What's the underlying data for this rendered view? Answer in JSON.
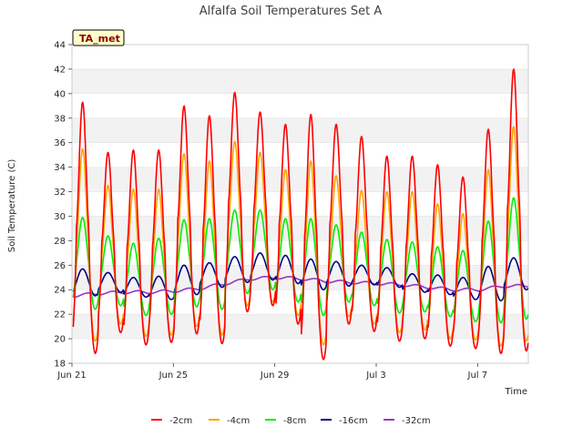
{
  "chart_data": {
    "type": "line",
    "title": "Alfalfa Soil Temperatures Set A",
    "xlabel": "Time",
    "ylabel": "Soil Temperature (C)",
    "station_label": "TA_met",
    "ylim": [
      18,
      44
    ],
    "y_ticks": [
      "18",
      "20",
      "22",
      "24",
      "26",
      "28",
      "30",
      "32",
      "34",
      "36",
      "38",
      "40",
      "42",
      "44"
    ],
    "xlim": [
      "2024-06-21",
      "2024-07-09"
    ],
    "x_tick_labels": [
      "Jun 21",
      "Jun 25",
      "Jun 29",
      "Jul 3",
      "Jul 7"
    ],
    "grid": "horizontal bands",
    "legend_position": "bottom-center",
    "series": [
      {
        "name": "-2cm",
        "color": "#ff0000",
        "daily_max": [
          39.3,
          35.2,
          35.4,
          35.4,
          39.0,
          38.2,
          40.1,
          38.5,
          37.5,
          38.3,
          37.5,
          36.5,
          34.9,
          34.9,
          34.2,
          33.2,
          37.1,
          42.0
        ],
        "daily_min": [
          18.8,
          20.5,
          19.5,
          19.7,
          20.4,
          19.6,
          22.2,
          22.7,
          21.2,
          18.3,
          21.2,
          20.6,
          19.8,
          20.0,
          19.4,
          19.2,
          18.8,
          19.0
        ]
      },
      {
        "name": "-4cm",
        "color": "#ffa500",
        "daily_max": [
          35.5,
          32.5,
          32.2,
          32.2,
          35.1,
          34.5,
          36.1,
          35.2,
          33.8,
          34.5,
          33.3,
          32.1,
          32.0,
          32.0,
          31.0,
          30.2,
          33.8,
          37.3
        ],
        "daily_min": [
          19.8,
          21.2,
          20.2,
          20.3,
          21.0,
          20.3,
          22.7,
          23.0,
          21.9,
          19.5,
          21.8,
          21.2,
          20.5,
          20.7,
          20.0,
          19.9,
          19.4,
          19.8
        ]
      },
      {
        "name": "-8cm",
        "color": "#00ee00",
        "daily_max": [
          29.9,
          28.4,
          27.8,
          28.2,
          29.7,
          29.8,
          30.5,
          30.5,
          29.8,
          29.8,
          29.3,
          28.7,
          28.1,
          27.9,
          27.5,
          27.2,
          29.6,
          31.5
        ],
        "daily_min": [
          22.4,
          22.7,
          21.9,
          22.0,
          22.6,
          22.4,
          23.7,
          24.0,
          23.0,
          21.9,
          23.0,
          22.7,
          22.1,
          22.2,
          21.8,
          21.4,
          21.3,
          21.6
        ]
      },
      {
        "name": "-16cm",
        "color": "#00008b",
        "daily_max": [
          25.7,
          25.4,
          25.0,
          25.1,
          26.0,
          26.2,
          26.7,
          27.0,
          26.8,
          26.5,
          26.3,
          26.0,
          25.8,
          25.3,
          25.2,
          25.0,
          25.9,
          26.6
        ],
        "daily_min": [
          23.5,
          23.8,
          23.4,
          23.2,
          23.6,
          24.2,
          24.6,
          24.8,
          24.5,
          24.0,
          24.3,
          24.4,
          24.2,
          23.8,
          23.6,
          23.2,
          23.1,
          24.0
        ]
      },
      {
        "name": "-32cm",
        "color": "#9a32cd",
        "daily_mean": [
          23.5,
          23.7,
          23.8,
          23.8,
          23.9,
          24.1,
          24.5,
          24.9,
          25.0,
          24.9,
          24.7,
          24.6,
          24.5,
          24.4,
          24.2,
          24.0,
          24.0,
          24.3
        ]
      }
    ]
  }
}
